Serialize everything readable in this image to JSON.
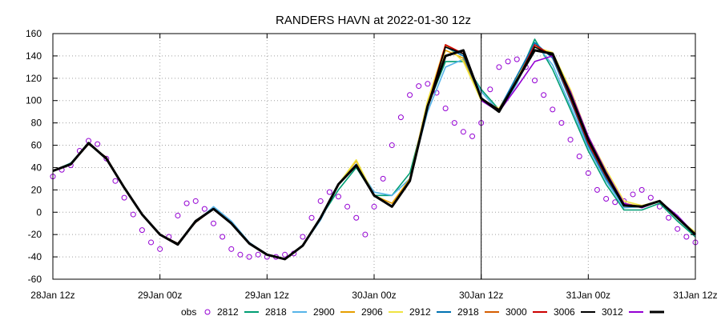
{
  "chart_data": {
    "type": "line",
    "title": "RANDERS HAVN at 2022-01-30 12z",
    "xlabel": "",
    "ylabel": "",
    "ylim": [
      -60,
      160
    ],
    "yticks": [
      -60,
      -40,
      -20,
      0,
      20,
      40,
      60,
      80,
      100,
      120,
      140,
      160
    ],
    "x_unit": "hours since 28Jan 12z",
    "xlim": [
      0,
      72
    ],
    "xticks": [
      {
        "x": 0,
        "label": "28Jan 12z"
      },
      {
        "x": 12,
        "label": "29Jan 00z"
      },
      {
        "x": 24,
        "label": "29Jan 12z"
      },
      {
        "x": 36,
        "label": "30Jan 00z"
      },
      {
        "x": 48,
        "label": "30Jan 12z"
      },
      {
        "x": 60,
        "label": "31Jan 00z"
      },
      {
        "x": 72,
        "label": "31Jan 12z"
      }
    ],
    "grid": true,
    "analysis_time_x": 48,
    "legend_position": "bottom",
    "series": [
      {
        "name": "obs",
        "color": "#9400d3",
        "style": "circles",
        "x": [
          0,
          1,
          2,
          3,
          4,
          5,
          6,
          7,
          8,
          9,
          10,
          11,
          12,
          13,
          14,
          15,
          16,
          17,
          18,
          19,
          20,
          21,
          22,
          23,
          24,
          25,
          26,
          27,
          28,
          29,
          30,
          31,
          32,
          33,
          34,
          35,
          36,
          37,
          38,
          39,
          40,
          41,
          42,
          43,
          44,
          45,
          46,
          47,
          48,
          49,
          50,
          51,
          52,
          53,
          54,
          55,
          56,
          57,
          58,
          59,
          60,
          61,
          62,
          63,
          64,
          65,
          66,
          67,
          68,
          69,
          70,
          71,
          72
        ],
        "y": [
          32,
          38,
          42,
          55,
          64,
          61,
          48,
          28,
          13,
          -2,
          -16,
          -27,
          -33,
          -22,
          -3,
          8,
          10,
          3,
          -10,
          -22,
          -33,
          -38,
          -40,
          -38,
          -40,
          -40,
          -38,
          -37,
          -22,
          -5,
          10,
          18,
          14,
          5,
          -5,
          -20,
          5,
          30,
          60,
          85,
          105,
          113,
          115,
          107,
          93,
          80,
          72,
          68,
          80,
          110,
          130,
          135,
          137,
          130,
          118,
          105,
          92,
          80,
          65,
          50,
          35,
          20,
          12,
          9,
          10,
          16,
          20,
          13,
          5,
          -5,
          -15,
          -22,
          -27
        ]
      },
      {
        "name": "2812",
        "color": "#009e73",
        "x": [
          0,
          2,
          4,
          6,
          8,
          10,
          12,
          14,
          16,
          18,
          20,
          22,
          24,
          26,
          28,
          30,
          32,
          34,
          36,
          38,
          40,
          42,
          44,
          46,
          48,
          50,
          52,
          54,
          56,
          58,
          60,
          62,
          64,
          66,
          68,
          70,
          72
        ],
        "y": [
          37,
          44,
          62,
          48,
          22,
          -2,
          -20,
          -28,
          -8,
          3,
          -10,
          -28,
          -38,
          -42,
          -30,
          -5,
          20,
          40,
          15,
          15,
          35,
          95,
          135,
          135,
          110,
          92,
          118,
          155,
          128,
          92,
          55,
          25,
          2,
          2,
          8,
          -8,
          -22
        ]
      },
      {
        "name": "2818",
        "color": "#56b4e9",
        "x": [
          0,
          2,
          4,
          6,
          8,
          10,
          12,
          14,
          16,
          18,
          20,
          22,
          24,
          26,
          28,
          30,
          32,
          34,
          36,
          38,
          40,
          42,
          44,
          46,
          48,
          50,
          52,
          54,
          56,
          58,
          60,
          62,
          64,
          66,
          68,
          70,
          72
        ],
        "y": [
          37,
          43,
          61,
          48,
          22,
          -2,
          -20,
          -28,
          -9,
          5,
          -8,
          -27,
          -38,
          -42,
          -30,
          -7,
          25,
          43,
          18,
          15,
          30,
          90,
          130,
          137,
          108,
          90,
          115,
          152,
          132,
          95,
          58,
          28,
          4,
          5,
          10,
          -5,
          -21
        ]
      },
      {
        "name": "2900",
        "color": "#e69f00",
        "x": [
          0,
          2,
          4,
          6,
          8,
          10,
          12,
          14,
          16,
          18,
          20,
          22,
          24,
          26,
          28,
          30,
          32,
          34,
          36,
          38,
          40,
          42,
          44,
          46,
          48,
          50,
          52,
          54,
          56,
          58,
          60,
          62,
          64,
          66,
          68,
          70,
          72
        ],
        "y": [
          37,
          43,
          61,
          49,
          22,
          -2,
          -20,
          -28,
          -9,
          3,
          -10,
          -28,
          -38,
          -42,
          -30,
          -5,
          25,
          46,
          15,
          8,
          30,
          100,
          145,
          138,
          100,
          92,
          118,
          148,
          140,
          105,
          65,
          35,
          8,
          5,
          10,
          -5,
          -20
        ]
      },
      {
        "name": "2906",
        "color": "#f0e442",
        "x": [
          0,
          2,
          4,
          6,
          8,
          10,
          12,
          14,
          16,
          18,
          20,
          22,
          24,
          26,
          28,
          30,
          32,
          34,
          36,
          38,
          40,
          42,
          44,
          46,
          48,
          50,
          52,
          54,
          56,
          58,
          60,
          62,
          64,
          66,
          68,
          70,
          72
        ],
        "y": [
          37,
          43,
          61,
          49,
          22,
          -2,
          -20,
          -28,
          -9,
          3,
          -10,
          -28,
          -38,
          -42,
          -30,
          -5,
          25,
          47,
          15,
          5,
          28,
          100,
          150,
          135,
          100,
          93,
          120,
          148,
          143,
          110,
          68,
          38,
          10,
          6,
          10,
          -5,
          -18
        ]
      },
      {
        "name": "2912",
        "color": "#0072b2",
        "x": [
          0,
          2,
          4,
          6,
          8,
          10,
          12,
          14,
          16,
          18,
          20,
          22,
          24,
          26,
          28,
          30,
          32,
          34,
          36,
          38,
          40,
          42,
          44,
          46,
          48,
          50,
          52,
          54,
          56,
          58,
          60,
          62,
          64,
          66,
          68,
          70,
          72
        ],
        "y": [
          37,
          43,
          61,
          49,
          22,
          -2,
          -20,
          -28,
          -9,
          3,
          -10,
          -28,
          -38,
          -42,
          -30,
          -5,
          25,
          43,
          15,
          5,
          28,
          95,
          148,
          140,
          102,
          92,
          122,
          152,
          138,
          100,
          60,
          30,
          6,
          5,
          10,
          -5,
          -20
        ]
      },
      {
        "name": "2918",
        "color": "#d55e00",
        "x": [
          0,
          2,
          4,
          6,
          8,
          10,
          12,
          14,
          16,
          18,
          20,
          22,
          24,
          26,
          28,
          30,
          32,
          34,
          36,
          38,
          40,
          42,
          44,
          46,
          48,
          50,
          52,
          54,
          56,
          58,
          60,
          62,
          64,
          66,
          68,
          70,
          72
        ],
        "y": [
          37,
          43,
          61,
          49,
          22,
          -2,
          -20,
          -28,
          -9,
          3,
          -10,
          -28,
          -38,
          -42,
          -30,
          -5,
          25,
          42,
          15,
          5,
          28,
          95,
          150,
          142,
          102,
          92,
          118,
          150,
          140,
          102,
          62,
          32,
          6,
          5,
          10,
          -5,
          -20
        ]
      },
      {
        "name": "3000",
        "color": "#cc0000",
        "x": [
          0,
          2,
          4,
          6,
          8,
          10,
          12,
          14,
          16,
          18,
          20,
          22,
          24,
          26,
          28,
          30,
          32,
          34,
          36,
          38,
          40,
          42,
          44,
          46,
          48,
          50,
          52,
          54,
          56,
          58,
          60,
          62,
          64,
          66,
          68,
          70,
          72
        ],
        "y": [
          37,
          43,
          61,
          49,
          22,
          -2,
          -20,
          -28,
          -9,
          3,
          -10,
          -28,
          -38,
          -42,
          -30,
          -5,
          25,
          42,
          15,
          5,
          28,
          95,
          150,
          142,
          102,
          92,
          118,
          150,
          140,
          102,
          62,
          32,
          6,
          5,
          10,
          -5,
          -20
        ]
      },
      {
        "name": "3006",
        "color": "#000000",
        "x": [
          0,
          2,
          4,
          6,
          8,
          10,
          12,
          14,
          16,
          18,
          20,
          22,
          24,
          26,
          28,
          30,
          32,
          34,
          36,
          38,
          40,
          42,
          44,
          46,
          48,
          50,
          52,
          54,
          56,
          58,
          60,
          62,
          64,
          66,
          68,
          70,
          72
        ],
        "y": [
          37,
          43,
          61,
          49,
          22,
          -2,
          -20,
          -28,
          -9,
          3,
          -10,
          -28,
          -38,
          -42,
          -30,
          -5,
          25,
          42,
          15,
          5,
          28,
          95,
          148,
          142,
          102,
          92,
          118,
          148,
          140,
          104,
          64,
          34,
          7,
          5,
          10,
          -5,
          -20
        ]
      },
      {
        "name": "3012",
        "color": "#9400d3",
        "x": [
          48,
          50,
          52,
          54,
          56,
          58,
          60,
          62,
          64,
          66,
          68,
          70,
          72
        ],
        "y": [
          100,
          90,
          112,
          135,
          140,
          108,
          68,
          36,
          8,
          4,
          10,
          -3,
          -20
        ]
      },
      {
        "name": "",
        "color": "#000000",
        "width": 3,
        "x": [
          0,
          2,
          4,
          6,
          8,
          10,
          12,
          14,
          16,
          18,
          20,
          22,
          24,
          26,
          28,
          30,
          32,
          34,
          36,
          38,
          40,
          42,
          44,
          46,
          48,
          50,
          52,
          54,
          56,
          58,
          60,
          62,
          64,
          66,
          68,
          70,
          72
        ],
        "y": [
          37,
          43,
          62,
          48,
          22,
          -2,
          -20,
          -29,
          -8,
          3,
          -10,
          -28,
          -38,
          -42,
          -30,
          -5,
          25,
          42,
          15,
          5,
          28,
          95,
          140,
          145,
          102,
          90,
          118,
          145,
          142,
          105,
          65,
          34,
          6,
          5,
          10,
          -5,
          -20
        ]
      }
    ]
  }
}
